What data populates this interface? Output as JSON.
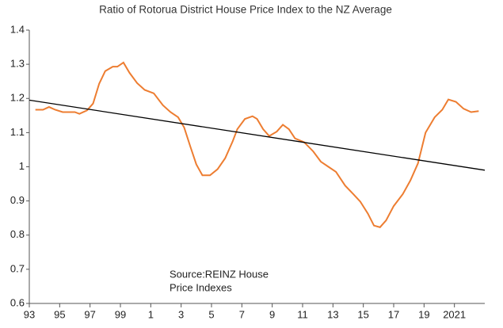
{
  "chart_data": {
    "type": "line",
    "title": "Ratio of Rotorua District House Price Index to the NZ Average",
    "annotation": [
      "Source:REINZ House",
      "Price Indexes"
    ],
    "xlim": [
      1993,
      2023
    ],
    "xticks": [
      {
        "value": 1993,
        "label": "93"
      },
      {
        "value": 1995,
        "label": "95"
      },
      {
        "value": 1997,
        "label": "97"
      },
      {
        "value": 1999,
        "label": "99"
      },
      {
        "value": 2001,
        "label": "1"
      },
      {
        "value": 2003,
        "label": "3"
      },
      {
        "value": 2005,
        "label": "5"
      },
      {
        "value": 2007,
        "label": "7"
      },
      {
        "value": 2009,
        "label": "9"
      },
      {
        "value": 2011,
        "label": "11"
      },
      {
        "value": 2013,
        "label": "13"
      },
      {
        "value": 2015,
        "label": "15"
      },
      {
        "value": 2017,
        "label": "17"
      },
      {
        "value": 2019,
        "label": "19"
      },
      2021
    ],
    "ylim": [
      0.6,
      1.4
    ],
    "yticks": [
      0.6,
      0.7,
      0.8,
      0.9,
      1,
      1.1,
      1.2,
      1.3,
      1.4
    ],
    "grid": false,
    "series": [
      {
        "color": "#ed7d31",
        "x": [
          1993.4,
          1993.9,
          1994.3,
          1994.7,
          1995.2,
          1996.0,
          1996.3,
          1996.8,
          1997.2,
          1997.6,
          1998.0,
          1998.5,
          1998.8,
          1999.2,
          1999.6,
          2000.1,
          2000.6,
          2001.2,
          2001.8,
          2002.3,
          2002.8,
          2003.2,
          2003.6,
          2004.0,
          2004.4,
          2004.9,
          2005.4,
          2005.9,
          2006.4,
          2006.7,
          2007.2,
          2007.7,
          2008.0,
          2008.4,
          2008.8,
          2009.3,
          2009.7,
          2010.1,
          2010.5,
          2011.1,
          2011.7,
          2012.2,
          2012.7,
          2013.2,
          2013.8,
          2014.3,
          2014.8,
          2015.3,
          2015.7,
          2016.1,
          2016.5,
          2017.0,
          2017.6,
          2018.1,
          2018.6,
          2019.1,
          2019.7,
          2020.2,
          2020.6,
          2021.1,
          2021.6,
          2022.1,
          2022.6
        ],
        "values": [
          1.167,
          1.167,
          1.175,
          1.167,
          1.16,
          1.16,
          1.155,
          1.165,
          1.185,
          1.243,
          1.28,
          1.293,
          1.293,
          1.305,
          1.275,
          1.245,
          1.225,
          1.215,
          1.18,
          1.16,
          1.145,
          1.115,
          1.06,
          1.007,
          0.975,
          0.975,
          0.993,
          1.025,
          1.075,
          1.11,
          1.14,
          1.148,
          1.14,
          1.11,
          1.09,
          1.103,
          1.123,
          1.11,
          1.083,
          1.072,
          1.045,
          1.015,
          1.0,
          0.985,
          0.945,
          0.922,
          0.898,
          0.863,
          0.828,
          0.823,
          0.843,
          0.885,
          0.92,
          0.96,
          1.01,
          1.1,
          1.145,
          1.167,
          1.197,
          1.19,
          1.17,
          1.16,
          1.163
        ]
      },
      {
        "color": "#000000",
        "x": [
          1993,
          2023
        ],
        "values": [
          1.195,
          0.99
        ]
      }
    ]
  }
}
